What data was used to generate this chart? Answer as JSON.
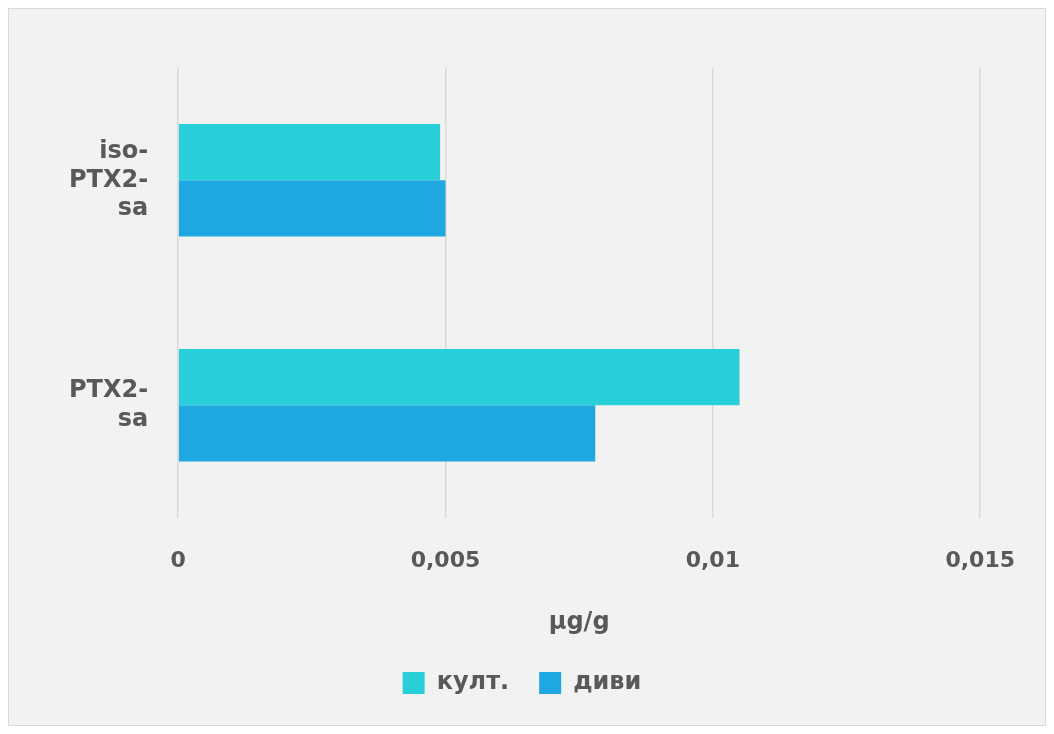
{
  "chart_data": {
    "type": "bar",
    "orientation": "horizontal",
    "xlabel": "µg/g",
    "categories": [
      "iso-PTX2-sa",
      "PTX2-sa"
    ],
    "series": [
      {
        "name": "култ.",
        "color": "#29cfd8",
        "values": [
          0.0049,
          0.0105
        ]
      },
      {
        "name": "диви",
        "color": "#1ea7e0",
        "values": [
          0.005,
          0.0078
        ]
      }
    ],
    "xlim": [
      0,
      0.015
    ],
    "xticks": [
      {
        "value": 0,
        "label": "0"
      },
      {
        "value": 0.005,
        "label": "0,005"
      },
      {
        "value": 0.01,
        "label": "0,01"
      },
      {
        "value": 0.015,
        "label": "0,015"
      }
    ],
    "grid": "x",
    "legend": "bottom"
  }
}
